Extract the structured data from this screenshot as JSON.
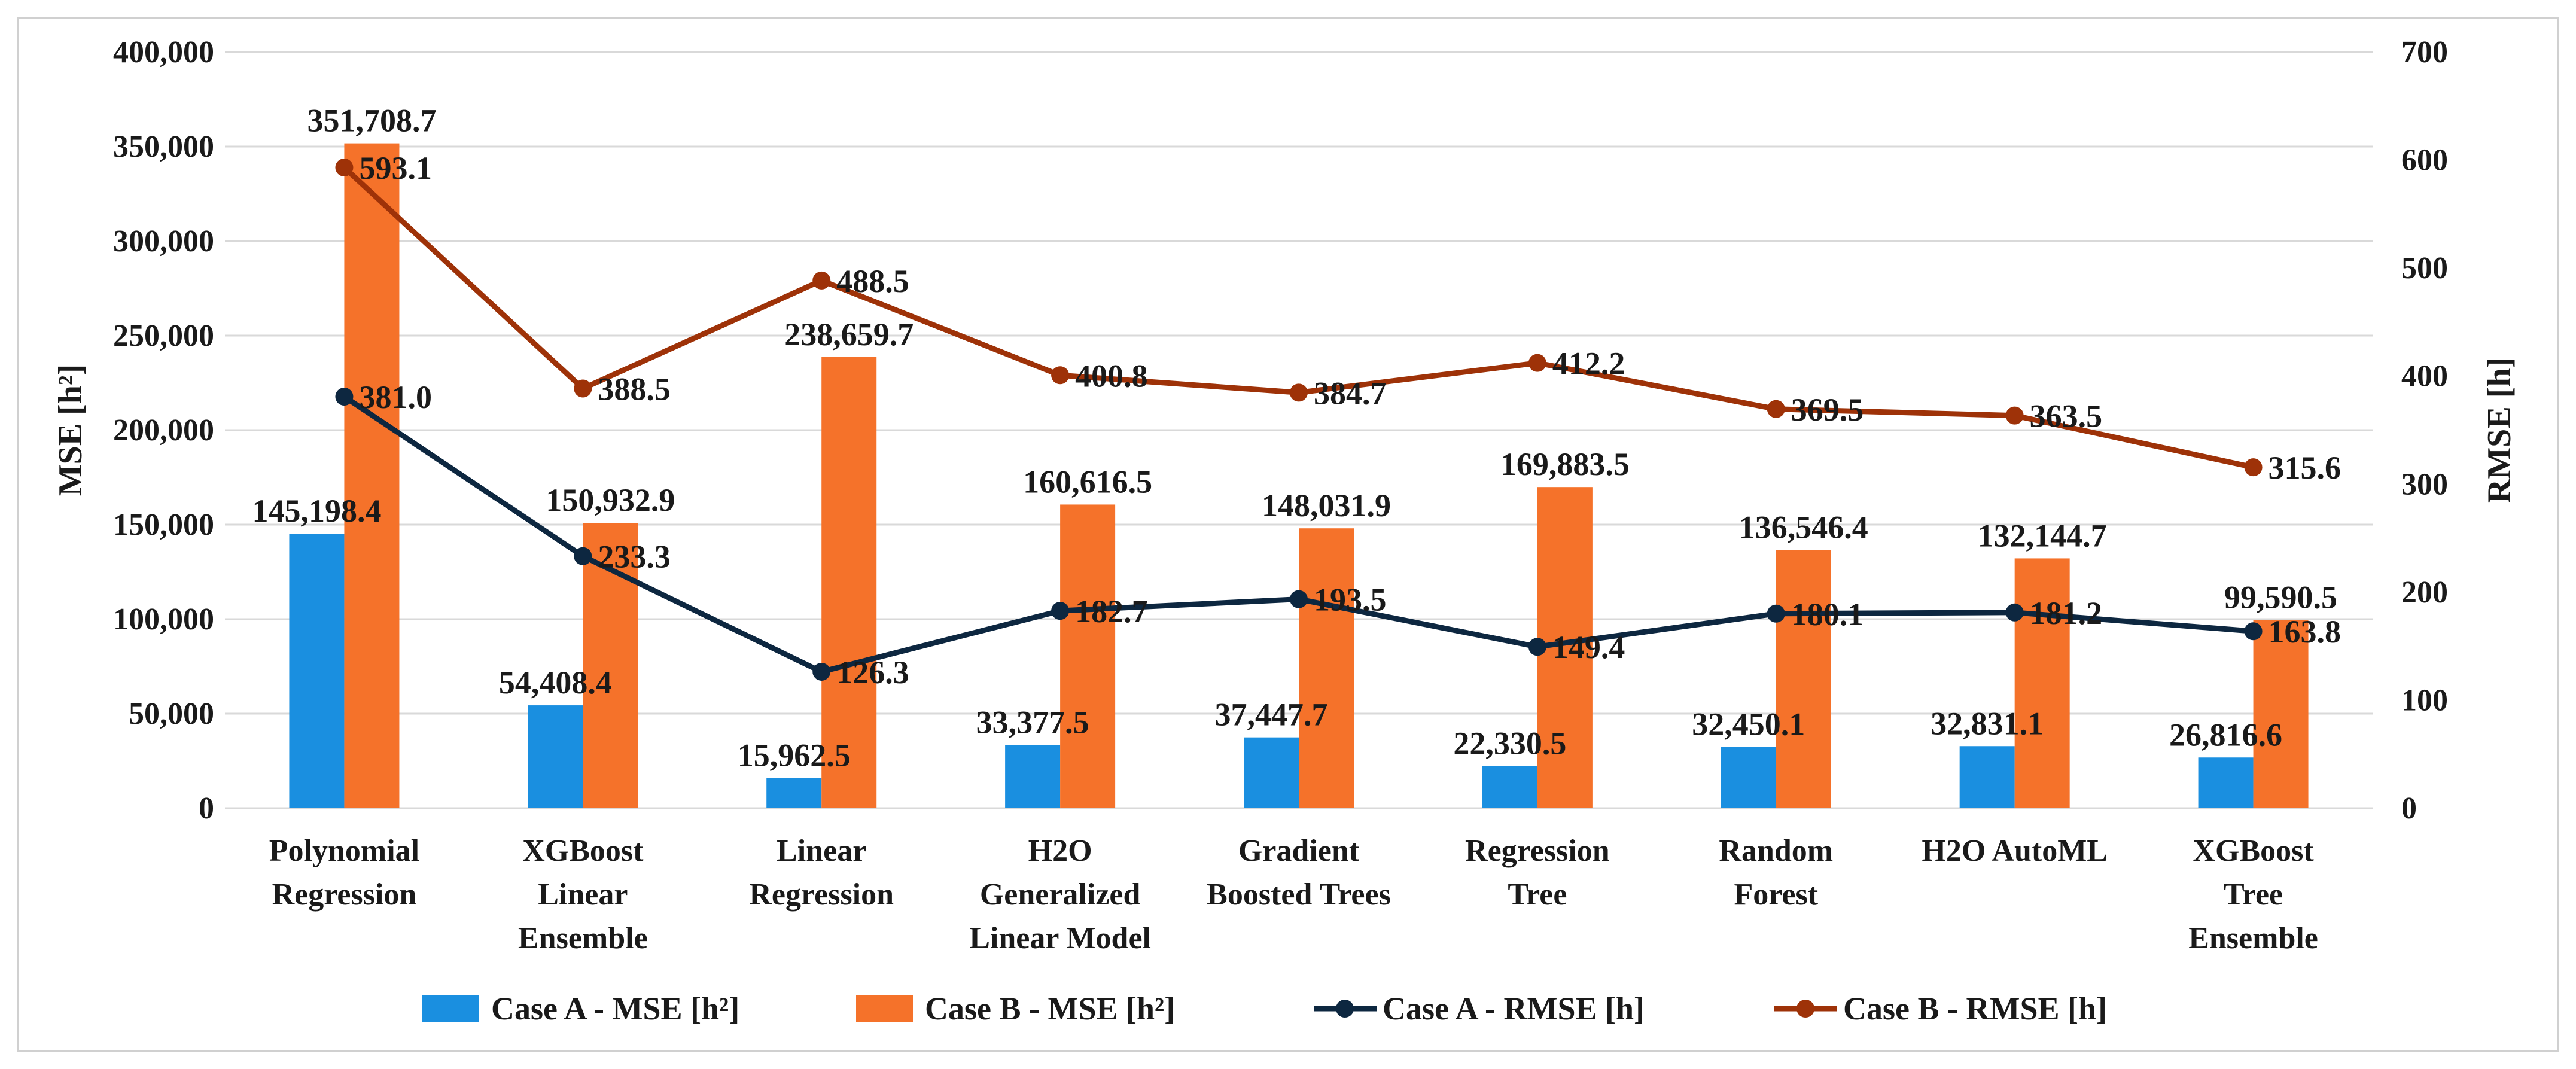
{
  "chart_data": {
    "type": "bar+line",
    "categories": [
      [
        "Polynomial",
        "Regression"
      ],
      [
        "XGBoost",
        "Linear",
        "Ensemble"
      ],
      [
        "Linear",
        "Regression"
      ],
      [
        "H2O",
        "Generalized",
        "Linear Model"
      ],
      [
        "Gradient",
        "Boosted Trees"
      ],
      [
        "Regression",
        "Tree"
      ],
      [
        "Random",
        "Forest"
      ],
      [
        "H2O AutoML"
      ],
      [
        "XGBoost",
        "Tree",
        "Ensemble"
      ]
    ],
    "y_left": {
      "label": "MSE  [h²]",
      "min": 0,
      "max": 400000,
      "step": 50000,
      "ticks": [
        "0",
        "50,000",
        "100,000",
        "150,000",
        "200,000",
        "250,000",
        "300,000",
        "350,000",
        "400,000"
      ]
    },
    "y_right": {
      "label": "RMSE [h]",
      "min": 0,
      "max": 700,
      "step": 100,
      "ticks": [
        "0",
        "100",
        "200",
        "300",
        "400",
        "500",
        "600",
        "700"
      ]
    },
    "series": [
      {
        "name": "Case A  -  MSE [h²]",
        "kind": "bar",
        "axis": "left",
        "color": "#1a8fe0",
        "values": [
          145198.4,
          54408.4,
          15962.5,
          33377.5,
          37447.7,
          22330.5,
          32450.1,
          32831.1,
          26816.6
        ],
        "labels": [
          "145,198.4",
          "54,408.4",
          "15,962.5",
          "33,377.5",
          "37,447.7",
          "22,330.5",
          "32,450.1",
          "32,831.1",
          "26,816.6"
        ]
      },
      {
        "name": "Case B  -  MSE [h²]",
        "kind": "bar",
        "axis": "left",
        "color": "#f5722a",
        "values": [
          351708.7,
          150932.9,
          238659.7,
          160616.5,
          148031.9,
          169883.5,
          136546.4,
          132144.7,
          99590.5
        ],
        "labels": [
          "351,708.7",
          "150,932.9",
          "238,659.7",
          "160,616.5",
          "148,031.9",
          "169,883.5",
          "136,546.4",
          "132,144.7",
          "99,590.5"
        ]
      },
      {
        "name": "Case A  -  RMSE [h]",
        "kind": "line",
        "axis": "right",
        "color": "#0d2740",
        "values": [
          381.0,
          233.3,
          126.3,
          182.7,
          193.5,
          149.4,
          180.1,
          181.2,
          163.8
        ],
        "labels": [
          "381.0",
          "233.3",
          "126.3",
          "182.7",
          "193.5",
          "149.4",
          "180.1",
          "181.2",
          "163.8"
        ]
      },
      {
        "name": "Case B  -  RMSE [h]",
        "kind": "line",
        "axis": "right",
        "color": "#9e3208",
        "values": [
          593.1,
          388.5,
          488.5,
          400.8,
          384.7,
          412.2,
          369.5,
          363.5,
          315.6
        ],
        "labels": [
          "593.1",
          "388.5",
          "488.5",
          "400.8",
          "384.7",
          "412.2",
          "369.5",
          "363.5",
          "315.6"
        ]
      }
    ],
    "legend_position": "bottom",
    "grid": true
  }
}
